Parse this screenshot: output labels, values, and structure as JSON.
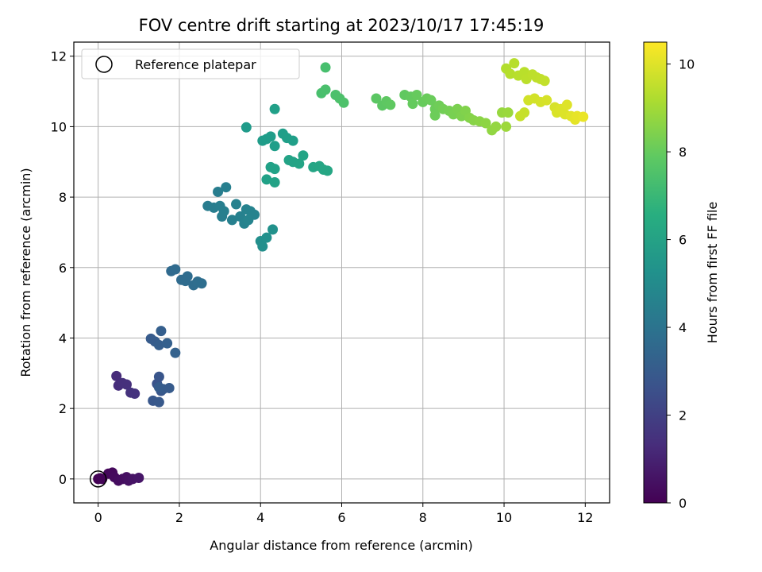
{
  "chart_data": {
    "type": "scatter",
    "title": "FOV centre drift starting at 2023/10/17 17:45:19",
    "xlabel": "Angular distance from reference (arcmin)",
    "ylabel": "Rotation from reference (arcmin)",
    "xlim": [
      -0.6,
      12.6
    ],
    "ylim": [
      -0.68,
      12.4
    ],
    "xticks": [
      0,
      2,
      4,
      6,
      8,
      10,
      12
    ],
    "yticks": [
      0,
      2,
      4,
      6,
      8,
      10,
      12
    ],
    "grid": true,
    "legend": {
      "placement": "upper-left",
      "entries": [
        "Reference platepar"
      ]
    },
    "reference_point": {
      "x": 0,
      "y": 0,
      "label": "Reference platepar"
    },
    "colorbar": {
      "label": "Hours from first FF file",
      "colormap": "viridis",
      "range": [
        0,
        10.5
      ],
      "ticks": [
        0,
        2,
        4,
        6,
        8,
        10
      ]
    },
    "points": [
      [
        0.0,
        0.0,
        0.0
      ],
      [
        0.05,
        0.02,
        0.05
      ],
      [
        0.1,
        0.0,
        0.1
      ],
      [
        0.25,
        0.15,
        0.2
      ],
      [
        0.35,
        0.18,
        0.25
      ],
      [
        0.4,
        0.05,
        0.3
      ],
      [
        0.5,
        -0.05,
        0.35
      ],
      [
        0.6,
        0.0,
        0.4
      ],
      [
        0.7,
        0.05,
        0.45
      ],
      [
        0.75,
        -0.05,
        0.5
      ],
      [
        0.85,
        0.0,
        0.55
      ],
      [
        1.0,
        0.03,
        0.6
      ],
      [
        0.45,
        2.92,
        1.3
      ],
      [
        0.5,
        2.65,
        1.35
      ],
      [
        0.6,
        2.72,
        1.4
      ],
      [
        0.7,
        2.68,
        1.45
      ],
      [
        0.8,
        2.45,
        1.5
      ],
      [
        0.9,
        2.42,
        1.55
      ],
      [
        1.3,
        3.98,
        3.0
      ],
      [
        1.4,
        3.9,
        3.05
      ],
      [
        1.5,
        3.8,
        3.1
      ],
      [
        1.55,
        4.2,
        3.15
      ],
      [
        1.7,
        3.85,
        3.2
      ],
      [
        1.9,
        3.58,
        3.25
      ],
      [
        1.45,
        2.7,
        2.7
      ],
      [
        1.5,
        2.9,
        2.75
      ],
      [
        1.55,
        2.5,
        2.8
      ],
      [
        1.35,
        2.22,
        2.85
      ],
      [
        1.5,
        2.18,
        2.9
      ],
      [
        1.6,
        2.55,
        2.95
      ],
      [
        1.75,
        2.58,
        3.0
      ],
      [
        1.5,
        2.6,
        3.05
      ],
      [
        1.8,
        5.9,
        3.6
      ],
      [
        1.9,
        5.95,
        3.62
      ],
      [
        2.05,
        5.65,
        3.65
      ],
      [
        2.2,
        5.75,
        3.68
      ],
      [
        2.15,
        5.62,
        3.7
      ],
      [
        2.35,
        5.5,
        3.72
      ],
      [
        2.45,
        5.6,
        3.75
      ],
      [
        2.55,
        5.55,
        3.78
      ],
      [
        2.7,
        7.75,
        4.4
      ],
      [
        2.85,
        7.7,
        4.42
      ],
      [
        2.95,
        8.15,
        4.45
      ],
      [
        3.0,
        7.75,
        4.48
      ],
      [
        3.05,
        7.45,
        4.5
      ],
      [
        3.1,
        7.6,
        4.52
      ],
      [
        3.15,
        8.28,
        4.55
      ],
      [
        3.3,
        7.35,
        4.58
      ],
      [
        3.4,
        7.8,
        4.6
      ],
      [
        3.5,
        7.45,
        4.62
      ],
      [
        3.6,
        7.25,
        4.65
      ],
      [
        3.65,
        7.65,
        4.68
      ],
      [
        3.75,
        7.6,
        4.7
      ],
      [
        3.85,
        7.5,
        4.72
      ],
      [
        3.7,
        7.35,
        4.75
      ],
      [
        4.0,
        6.75,
        5.2
      ],
      [
        4.05,
        6.6,
        5.22
      ],
      [
        4.15,
        6.85,
        5.25
      ],
      [
        4.3,
        7.08,
        5.28
      ],
      [
        3.65,
        9.98,
        5.7
      ],
      [
        4.05,
        9.6,
        5.75
      ],
      [
        4.15,
        9.65,
        5.78
      ],
      [
        4.25,
        9.72,
        5.8
      ],
      [
        4.35,
        9.45,
        5.82
      ],
      [
        4.55,
        9.8,
        5.85
      ],
      [
        4.65,
        9.68,
        5.88
      ],
      [
        4.8,
        9.6,
        5.9
      ],
      [
        4.35,
        10.5,
        5.92
      ],
      [
        4.15,
        8.5,
        5.95
      ],
      [
        4.25,
        8.85,
        5.98
      ],
      [
        4.35,
        8.8,
        6.0
      ],
      [
        4.35,
        8.42,
        6.02
      ],
      [
        4.7,
        9.05,
        6.05
      ],
      [
        4.8,
        9.0,
        6.08
      ],
      [
        4.95,
        8.95,
        6.1
      ],
      [
        5.05,
        9.18,
        6.12
      ],
      [
        5.3,
        8.85,
        6.15
      ],
      [
        5.45,
        8.88,
        6.18
      ],
      [
        5.55,
        8.78,
        6.2
      ],
      [
        5.65,
        8.75,
        6.22
      ],
      [
        5.6,
        11.68,
        7.4
      ],
      [
        5.5,
        10.95,
        7.42
      ],
      [
        5.6,
        11.05,
        7.45
      ],
      [
        5.85,
        10.9,
        7.48
      ],
      [
        5.95,
        10.8,
        7.5
      ],
      [
        6.05,
        10.68,
        7.52
      ],
      [
        6.85,
        10.8,
        7.8
      ],
      [
        7.0,
        10.6,
        7.82
      ],
      [
        7.1,
        10.72,
        7.85
      ],
      [
        7.2,
        10.62,
        7.88
      ],
      [
        7.55,
        10.9,
        7.9
      ],
      [
        7.7,
        10.85,
        7.95
      ],
      [
        7.75,
        10.65,
        8.0
      ],
      [
        7.85,
        10.9,
        8.02
      ],
      [
        8.0,
        10.7,
        8.05
      ],
      [
        8.1,
        10.8,
        8.08
      ],
      [
        8.2,
        10.75,
        8.1
      ],
      [
        8.3,
        10.5,
        8.12
      ],
      [
        8.3,
        10.32,
        8.15
      ],
      [
        8.4,
        10.6,
        8.2
      ],
      [
        8.5,
        10.5,
        8.25
      ],
      [
        8.65,
        10.45,
        8.3
      ],
      [
        8.75,
        10.35,
        8.35
      ],
      [
        8.85,
        10.5,
        8.4
      ],
      [
        8.95,
        10.3,
        8.45
      ],
      [
        9.05,
        10.45,
        8.5
      ],
      [
        9.15,
        10.25,
        8.55
      ],
      [
        9.25,
        10.18,
        8.6
      ],
      [
        9.4,
        10.15,
        8.65
      ],
      [
        9.55,
        10.1,
        8.7
      ],
      [
        9.7,
        9.9,
        8.75
      ],
      [
        9.8,
        10.0,
        8.8
      ],
      [
        9.95,
        10.4,
        8.85
      ],
      [
        10.1,
        10.4,
        8.9
      ],
      [
        10.05,
        10.0,
        8.95
      ],
      [
        10.05,
        11.65,
        9.3
      ],
      [
        10.15,
        11.5,
        9.35
      ],
      [
        10.25,
        11.8,
        9.38
      ],
      [
        10.35,
        11.45,
        9.4
      ],
      [
        10.5,
        11.55,
        9.42
      ],
      [
        10.55,
        11.35,
        9.45
      ],
      [
        10.7,
        11.48,
        9.48
      ],
      [
        10.8,
        11.4,
        9.5
      ],
      [
        10.9,
        11.35,
        9.52
      ],
      [
        11.0,
        11.3,
        9.55
      ],
      [
        10.4,
        10.3,
        9.6
      ],
      [
        10.5,
        10.4,
        9.62
      ],
      [
        10.6,
        10.75,
        9.8
      ],
      [
        10.75,
        10.8,
        9.82
      ],
      [
        10.9,
        10.7,
        9.85
      ],
      [
        11.05,
        10.75,
        9.88
      ],
      [
        11.25,
        10.55,
        9.9
      ],
      [
        11.3,
        10.4,
        9.92
      ],
      [
        11.4,
        10.5,
        9.95
      ],
      [
        11.5,
        10.35,
        9.98
      ],
      [
        11.55,
        10.62,
        10.0
      ],
      [
        11.65,
        10.3,
        10.05
      ],
      [
        11.75,
        10.2,
        10.1
      ],
      [
        11.8,
        10.3,
        10.15
      ],
      [
        11.95,
        10.28,
        10.2
      ]
    ]
  }
}
